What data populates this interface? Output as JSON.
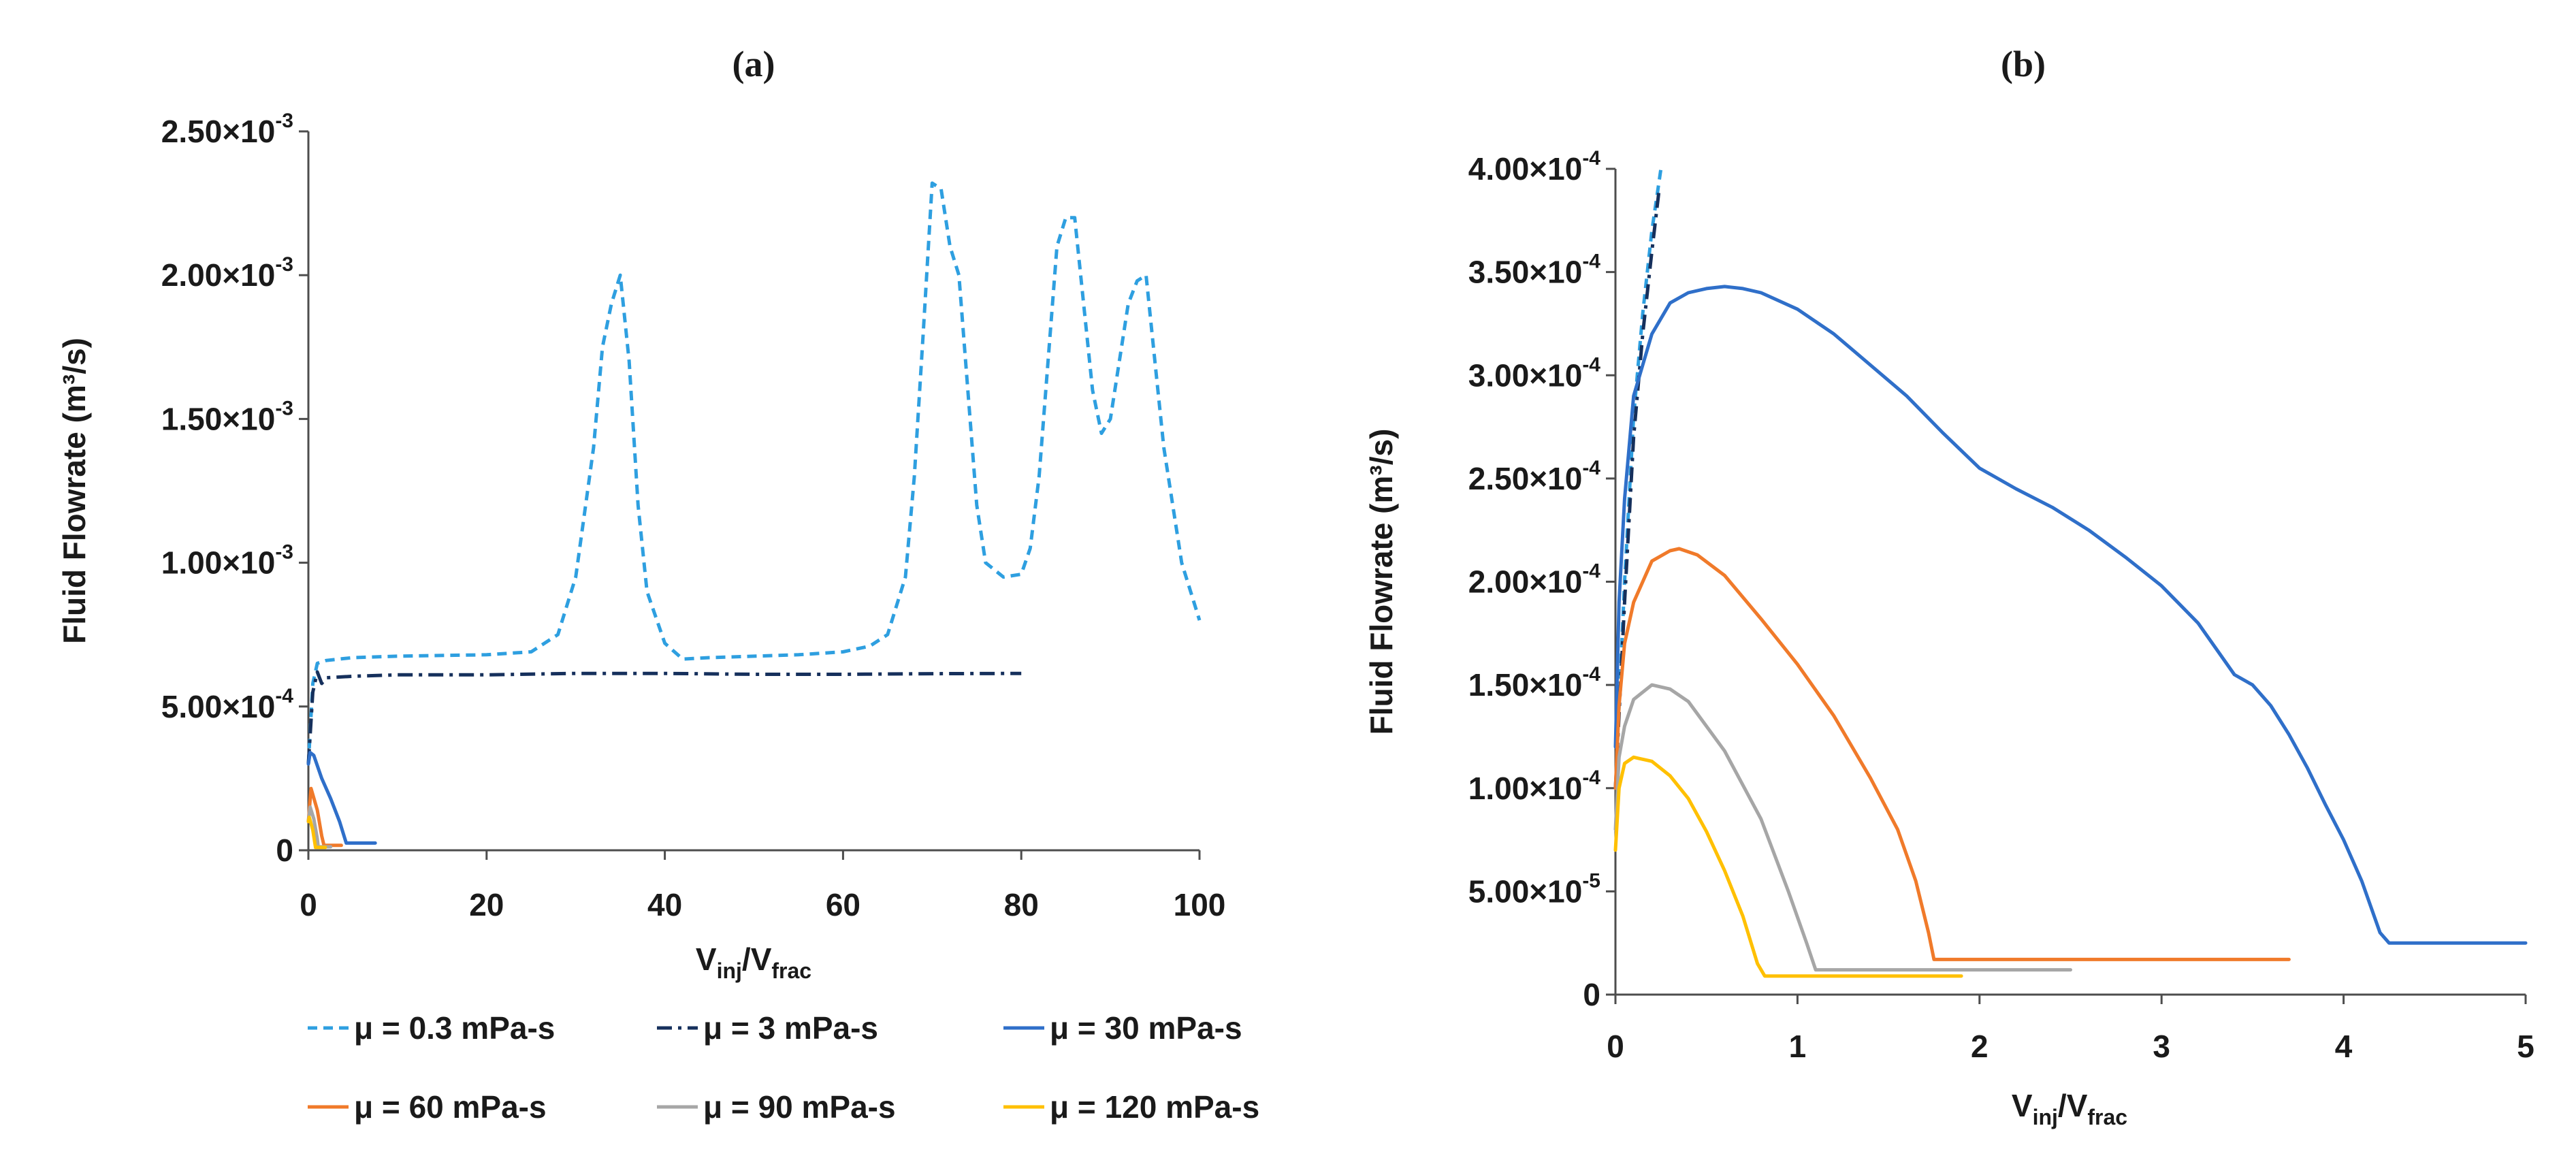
{
  "chart_data": [
    {
      "panel": "(a)",
      "type": "line",
      "title": "(a)",
      "xlabel": {
        "main": "V",
        "sub1": "inj",
        "slash": "/V",
        "sub2": "frac"
      },
      "ylabel": "Fluid Flowrate (m³/s)",
      "xlim": [
        0,
        100
      ],
      "ylim": [
        0,
        0.0025
      ],
      "xticks": [
        "0",
        "20",
        "40",
        "60",
        "80",
        "100"
      ],
      "yticks": [
        {
          "v": 0,
          "m": "0",
          "e": ""
        },
        {
          "v": 0.0005,
          "m": "5.00×10",
          "e": "-4"
        },
        {
          "v": 0.001,
          "m": "1.00×10",
          "e": "-3"
        },
        {
          "v": 0.0015,
          "m": "1.50×10",
          "e": "-3"
        },
        {
          "v": 0.002,
          "m": "2.00×10",
          "e": "-3"
        },
        {
          "v": 0.0025,
          "m": "2.50×10",
          "e": "-3"
        }
      ],
      "series": [
        {
          "name": "μ = 0.3 mPa-s",
          "color": "#2e9fe0",
          "dash": "dash",
          "x": [
            0,
            0.5,
            1,
            2,
            5,
            10,
            20,
            25,
            28,
            30,
            32,
            33,
            34,
            35,
            36,
            37,
            38,
            40,
            42,
            45,
            50,
            55,
            60,
            63,
            65,
            67,
            68,
            69,
            70,
            71,
            72,
            73,
            74,
            75,
            76,
            78,
            80,
            81,
            82,
            83,
            84,
            85,
            86,
            87,
            88,
            89,
            90,
            91,
            92,
            93,
            94,
            95,
            96,
            98,
            100
          ],
          "y": [
            0.0003,
            0.00058,
            0.00065,
            0.00066,
            0.00067,
            0.000675,
            0.00068,
            0.00069,
            0.00075,
            0.00095,
            0.0014,
            0.00175,
            0.0019,
            0.002,
            0.0017,
            0.0012,
            0.0009,
            0.00072,
            0.000665,
            0.00067,
            0.000675,
            0.00068,
            0.00069,
            0.00071,
            0.00075,
            0.00095,
            0.0013,
            0.0018,
            0.00232,
            0.0023,
            0.0021,
            0.002,
            0.0016,
            0.0012,
            0.001,
            0.00095,
            0.00096,
            0.00105,
            0.0013,
            0.0017,
            0.0021,
            0.0022,
            0.0022,
            0.0019,
            0.0016,
            0.00145,
            0.0015,
            0.0017,
            0.0019,
            0.00198,
            0.002,
            0.0017,
            0.0014,
            0.001,
            0.0008
          ]
        },
        {
          "name": "μ = 3 mPa-s",
          "color": "#16305c",
          "dash": "dashdot",
          "x": [
            0,
            0.5,
            1,
            1.5,
            2,
            5,
            10,
            20,
            30,
            40,
            50,
            60,
            70,
            80
          ],
          "y": [
            0.0003,
            0.00055,
            0.00062,
            0.00058,
            0.0006,
            0.000605,
            0.00061,
            0.00061,
            0.000615,
            0.000615,
            0.000612,
            0.000612,
            0.000614,
            0.000615
          ]
        },
        {
          "name": "μ = 30 mPa-s",
          "color": "#2f6fc9",
          "dash": "solid",
          "x": [
            0,
            0.2,
            0.6,
            1.5,
            2.5,
            3.5,
            4.25,
            5,
            7.5
          ],
          "y": [
            0.0003,
            0.00034,
            0.00033,
            0.00025,
            0.00018,
            0.0001,
            2.5e-05,
            2.5e-05,
            2.5e-05
          ]
        },
        {
          "name": "μ = 60 mPa-s",
          "color": "#f07a2a",
          "dash": "solid",
          "x": [
            0,
            0.3,
            1.0,
            1.5,
            1.75,
            3.7
          ],
          "y": [
            0.0001,
            0.000215,
            0.00014,
            5e-05,
            1.7e-05,
            1.7e-05
          ]
        },
        {
          "name": "μ = 90 mPa-s",
          "color": "#a6a6a6",
          "dash": "solid",
          "x": [
            0,
            0.2,
            0.6,
            1.0,
            1.1,
            2.5
          ],
          "y": [
            0.0001,
            0.00015,
            0.00011,
            4e-05,
            1.2e-05,
            1.2e-05
          ]
        },
        {
          "name": "μ = 120 mPa-s",
          "color": "#ffc000",
          "dash": "solid",
          "x": [
            0,
            0.1,
            0.5,
            0.8,
            1.9
          ],
          "y": [
            0.0001,
            0.000115,
            7e-05,
            1e-05,
            1e-05
          ]
        }
      ]
    },
    {
      "panel": "(b)",
      "type": "line",
      "title": "(b)",
      "xlabel": {
        "main": "V",
        "sub1": "inj",
        "slash": "/V",
        "sub2": "frac"
      },
      "ylabel": "Fluid Flowrate (m³/s)",
      "xlim": [
        0,
        5
      ],
      "ylim": [
        0,
        0.0004
      ],
      "xticks": [
        "0",
        "1",
        "2",
        "3",
        "4",
        "5"
      ],
      "yticks": [
        {
          "v": 0,
          "m": "0",
          "e": ""
        },
        {
          "v": 5e-05,
          "m": "5.00×10",
          "e": "-5"
        },
        {
          "v": 0.0001,
          "m": "1.00×10",
          "e": "-4"
        },
        {
          "v": 0.00015,
          "m": "1.50×10",
          "e": "-4"
        },
        {
          "v": 0.0002,
          "m": "2.00×10",
          "e": "-4"
        },
        {
          "v": 0.00025,
          "m": "2.50×10",
          "e": "-4"
        },
        {
          "v": 0.0003,
          "m": "3.00×10",
          "e": "-4"
        },
        {
          "v": 0.00035,
          "m": "3.50×10",
          "e": "-4"
        },
        {
          "v": 0.0004,
          "m": "4.00×10",
          "e": "-4"
        }
      ],
      "series": [
        {
          "name": "μ = 0.3 mPa-s",
          "color": "#2e9fe0",
          "dash": "dash",
          "x": [
            0,
            0.05,
            0.1,
            0.15,
            0.2,
            0.25
          ],
          "y": [
            0.0001,
            0.0002,
            0.00028,
            0.00033,
            0.00037,
            0.0004
          ]
        },
        {
          "name": "μ = 3 mPa-s",
          "color": "#16305c",
          "dash": "dashdot",
          "x": [
            0,
            0.05,
            0.1,
            0.15,
            0.2,
            0.24
          ],
          "y": [
            0.0001,
            0.00019,
            0.00027,
            0.00032,
            0.00036,
            0.00039
          ]
        },
        {
          "name": "μ = 30 mPa-s",
          "color": "#2f6fc9",
          "dash": "solid",
          "x": [
            0,
            0.02,
            0.05,
            0.1,
            0.2,
            0.3,
            0.4,
            0.5,
            0.6,
            0.7,
            0.8,
            1.0,
            1.2,
            1.4,
            1.6,
            1.8,
            2.0,
            2.2,
            2.4,
            2.6,
            2.8,
            3.0,
            3.2,
            3.4,
            3.5,
            3.6,
            3.7,
            3.8,
            3.9,
            4.0,
            4.1,
            4.2,
            4.25,
            4.5,
            5.0
          ],
          "y": [
            0.00012,
            0.00019,
            0.00024,
            0.00029,
            0.00032,
            0.000335,
            0.00034,
            0.000342,
            0.000343,
            0.000342,
            0.00034,
            0.000332,
            0.00032,
            0.000305,
            0.00029,
            0.000272,
            0.000255,
            0.000245,
            0.000236,
            0.000225,
            0.000212,
            0.000198,
            0.00018,
            0.000155,
            0.00015,
            0.00014,
            0.000126,
            0.00011,
            9.2e-05,
            7.5e-05,
            5.5e-05,
            3e-05,
            2.5e-05,
            2.5e-05,
            2.5e-05
          ]
        },
        {
          "name": "μ = 60 mPa-s",
          "color": "#f07a2a",
          "dash": "solid",
          "x": [
            0,
            0.02,
            0.05,
            0.1,
            0.2,
            0.3,
            0.35,
            0.45,
            0.6,
            0.8,
            1.0,
            1.2,
            1.4,
            1.55,
            1.65,
            1.72,
            1.75,
            2.5,
            3.7
          ],
          "y": [
            0.0001,
            0.00014,
            0.00017,
            0.00019,
            0.00021,
            0.000215,
            0.000216,
            0.000213,
            0.000203,
            0.000182,
            0.00016,
            0.000135,
            0.000105,
            8e-05,
            5.5e-05,
            3e-05,
            1.7e-05,
            1.7e-05,
            1.7e-05
          ]
        },
        {
          "name": "μ = 90 mPa-s",
          "color": "#a6a6a6",
          "dash": "solid",
          "x": [
            0,
            0.02,
            0.05,
            0.1,
            0.2,
            0.3,
            0.4,
            0.6,
            0.8,
            0.95,
            1.05,
            1.1,
            1.8,
            2.5
          ],
          "y": [
            8e-05,
            0.000115,
            0.00013,
            0.000143,
            0.00015,
            0.000148,
            0.000142,
            0.000118,
            8.5e-05,
            5e-05,
            2.5e-05,
            1.2e-05,
            1.2e-05,
            1.2e-05
          ]
        },
        {
          "name": "μ = 120 mPa-s",
          "color": "#ffc000",
          "dash": "solid",
          "x": [
            0,
            0.02,
            0.05,
            0.1,
            0.2,
            0.3,
            0.4,
            0.5,
            0.6,
            0.7,
            0.78,
            0.82,
            1.3,
            1.9
          ],
          "y": [
            7e-05,
            0.0001,
            0.000112,
            0.000115,
            0.000113,
            0.000106,
            9.5e-05,
            7.9e-05,
            6e-05,
            3.8e-05,
            1.5e-05,
            9e-06,
            9e-06,
            9e-06
          ]
        }
      ]
    }
  ]
}
